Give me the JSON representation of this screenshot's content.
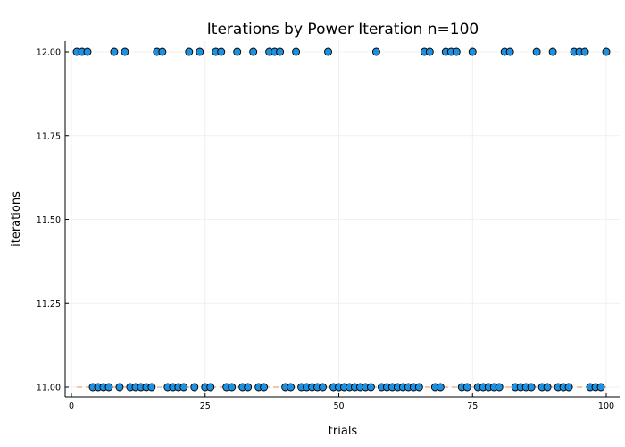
{
  "chart_data": {
    "type": "scatter",
    "title": "Iterations by Power Iteration  n=100",
    "xlabel": "trials",
    "ylabel": "iterations",
    "xlim": [
      1,
      100
    ],
    "ylim": [
      11.0,
      12.0
    ],
    "xticks": [
      0,
      25,
      50,
      75,
      100
    ],
    "xtick_labels": [
      "0",
      "25",
      "50",
      "75",
      "100"
    ],
    "yticks": [
      11.0,
      11.25,
      11.5,
      11.75,
      12.0
    ],
    "ytick_labels": [
      "11.00",
      "11.25",
      "11.50",
      "11.75",
      "12.00"
    ],
    "grid": true,
    "legend": "none",
    "colors": {
      "points": "#1e90e0",
      "reference_line": "#e8a87c"
    },
    "reference_line": {
      "y": 11.0,
      "style": "dashed"
    },
    "series": [
      {
        "x": [
          1,
          2,
          3,
          4,
          5,
          6,
          7,
          8,
          9,
          10,
          11,
          12,
          13,
          14,
          15,
          16,
          17,
          18,
          19,
          20,
          21,
          22,
          23,
          24,
          25,
          26,
          27,
          28,
          29,
          30,
          31,
          32,
          33,
          34,
          35,
          36,
          37,
          38,
          39,
          40,
          41,
          42,
          43,
          44,
          45,
          46,
          47,
          48,
          49,
          50,
          51,
          52,
          53,
          54,
          55,
          56,
          57,
          58,
          59,
          60,
          61,
          62,
          63,
          64,
          65,
          66,
          67,
          68,
          69,
          70,
          71,
          72,
          73,
          74,
          75,
          76,
          77,
          78,
          79,
          80,
          81,
          82,
          83,
          84,
          85,
          86,
          87,
          88,
          89,
          90,
          91,
          92,
          93,
          94,
          95,
          96,
          97,
          98,
          99,
          100
        ],
        "y": [
          12,
          12,
          12,
          11,
          11,
          11,
          11,
          12,
          11,
          12,
          11,
          11,
          11,
          11,
          11,
          12,
          12,
          11,
          11,
          11,
          11,
          12,
          11,
          12,
          11,
          11,
          12,
          12,
          11,
          11,
          12,
          11,
          11,
          12,
          11,
          11,
          12,
          12,
          12,
          11,
          11,
          12,
          11,
          11,
          11,
          11,
          11,
          12,
          11,
          11,
          11,
          11,
          11,
          11,
          11,
          11,
          12,
          11,
          11,
          11,
          11,
          11,
          11,
          11,
          11,
          12,
          12,
          11,
          11,
          12,
          12,
          12,
          11,
          11,
          12,
          11,
          11,
          11,
          11,
          11,
          12,
          12,
          11,
          11,
          11,
          11,
          12,
          11,
          11,
          12,
          11,
          11,
          11,
          12,
          12,
          12,
          11,
          11,
          11,
          12
        ]
      }
    ]
  }
}
